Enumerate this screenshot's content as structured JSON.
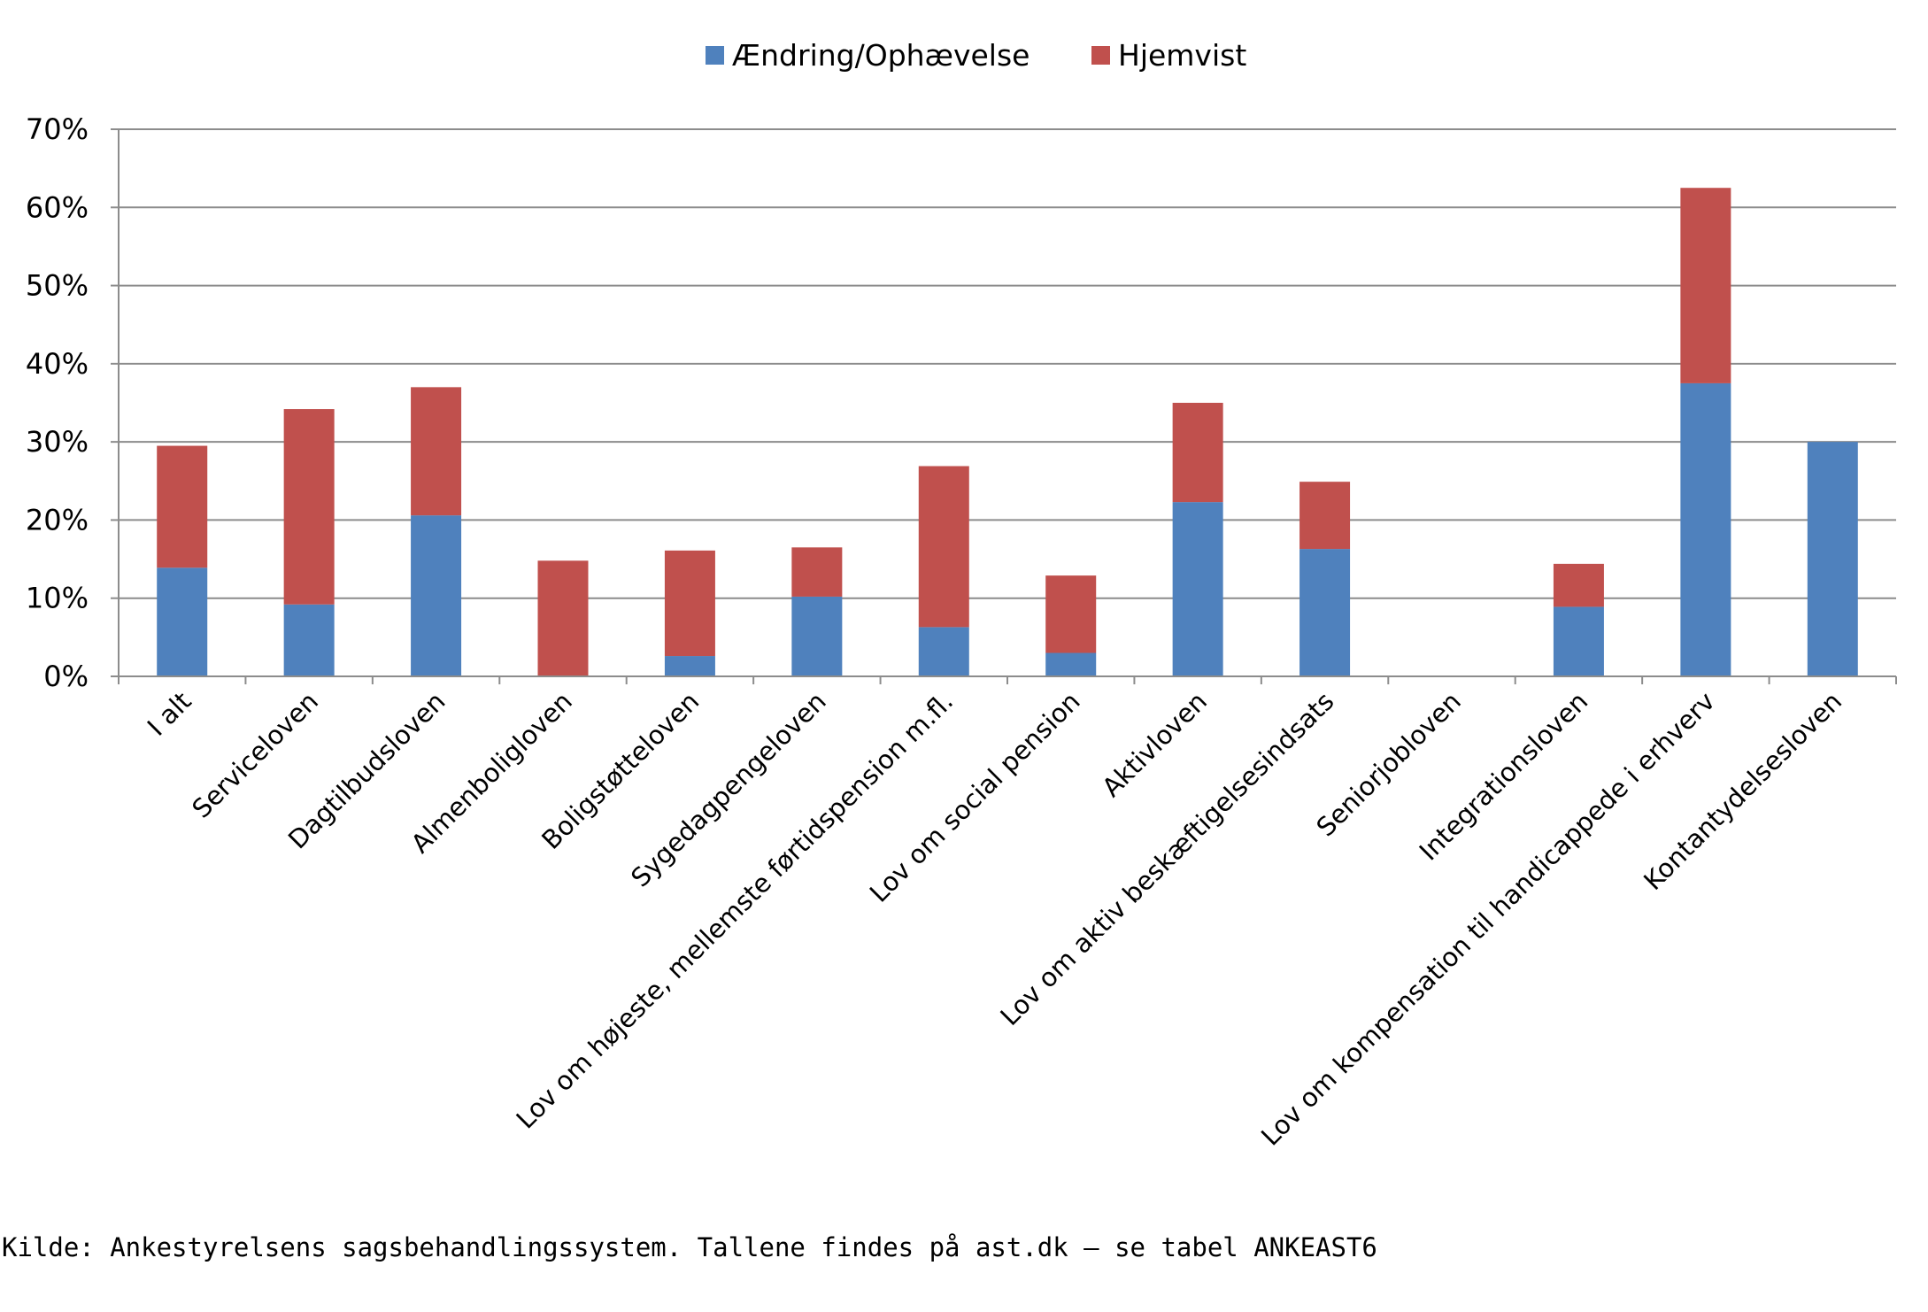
{
  "chart_data": {
    "type": "bar",
    "stacked": true,
    "title": "",
    "xlabel": "",
    "ylabel": "",
    "ylim": [
      0,
      70
    ],
    "y_unit": "%",
    "yticks": [
      0,
      10,
      20,
      30,
      40,
      50,
      60,
      70
    ],
    "grid": true,
    "legend_position": "top-center",
    "categories": [
      "I alt",
      "Serviceloven",
      "Dagtilbudsloven",
      "Almenboligloven",
      "Boligstøtteloven",
      "Sygedagpengeloven",
      "Lov om højeste, mellemste førtidspension m.fl.",
      "Lov om social pension",
      "Aktivloven",
      "Lov om aktiv beskæftigelsesindsats",
      "Seniorjobloven",
      "Integrationsloven",
      "Lov om kompensation til handicappede i erhverv",
      "Kontantydelsesloven"
    ],
    "series": [
      {
        "name": "Ændring/Ophævelse",
        "color": "#4F81BD",
        "values": [
          13.9,
          9.2,
          20.6,
          0,
          2.6,
          10.2,
          6.3,
          3.0,
          22.3,
          16.3,
          0,
          8.9,
          37.5,
          30.0
        ]
      },
      {
        "name": "Hjemvist",
        "color": "#C0504D",
        "values": [
          15.6,
          25.0,
          16.4,
          14.8,
          13.5,
          6.3,
          20.6,
          9.9,
          12.7,
          8.6,
          0,
          5.5,
          25.0,
          0
        ]
      }
    ]
  },
  "source_note": "Kilde: Ankestyrelsens sagsbehandlingssystem. Tallene findes på ast.dk – se tabel ANKEAST6"
}
